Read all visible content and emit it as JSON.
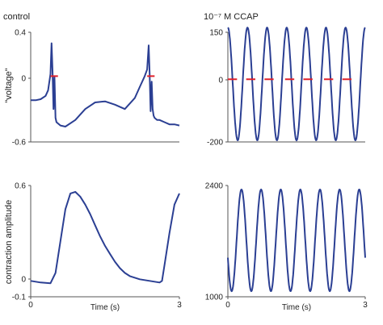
{
  "chart_data": [
    {
      "id": "top-left",
      "type": "line",
      "title": "control",
      "ylabel": "\"voltage\"",
      "xlabel": "",
      "xlim": [
        0,
        3
      ],
      "ylim": [
        -0.6,
        0.4
      ],
      "yticks": [
        "0.4",
        "0",
        "-0.6"
      ],
      "xticks": [],
      "series": [
        {
          "color": "#2b3f93",
          "x": [
            0,
            0.1,
            0.2,
            0.3,
            0.35,
            0.4,
            0.42,
            0.44,
            0.46,
            0.48,
            0.5,
            0.52,
            0.6,
            0.7,
            0.9,
            1.1,
            1.3,
            1.5,
            1.7,
            1.9,
            2.1,
            2.2,
            2.3,
            2.35,
            2.38,
            2.4,
            2.42,
            2.44,
            2.46,
            2.48,
            2.5,
            2.55,
            2.6,
            2.7,
            2.8,
            2.9,
            3.0
          ],
          "y": [
            -0.22,
            -0.22,
            -0.21,
            -0.18,
            -0.13,
            0.02,
            0.3,
            0.05,
            -0.3,
            0.0,
            -0.38,
            -0.42,
            -0.45,
            -0.46,
            -0.4,
            -0.3,
            -0.24,
            -0.23,
            -0.26,
            -0.3,
            -0.2,
            -0.1,
            0.0,
            0.06,
            0.28,
            0.02,
            -0.32,
            -0.05,
            -0.3,
            -0.36,
            -0.38,
            -0.4,
            -0.4,
            -0.42,
            -0.44,
            -0.44,
            -0.45
          ]
        },
        {
          "color": "#e0202a",
          "segments": [
            [
              0.4,
              0.55,
              0
            ],
            [
              2.35,
              2.5,
              0
            ]
          ]
        }
      ]
    },
    {
      "id": "top-right",
      "type": "line",
      "title": "10⁻⁷ M CCAP",
      "ylabel": "",
      "xlabel": "",
      "xlim": [
        0,
        3
      ],
      "ylim": [
        -200,
        150
      ],
      "yticks": [
        "150",
        "0",
        "-200"
      ],
      "xticks": [],
      "series": [
        {
          "color": "#2b3f93",
          "kind": "sine",
          "cycles": 7,
          "amplitude": 180,
          "offset": -15,
          "phase_deg": 90
        },
        {
          "color": "#e0202a",
          "segments": [
            [
              0.0,
              0.2,
              0
            ],
            [
              0.4,
              0.6,
              0
            ],
            [
              0.8,
              1.0,
              0
            ],
            [
              1.25,
              1.45,
              0
            ],
            [
              1.65,
              1.85,
              0
            ],
            [
              2.1,
              2.3,
              0
            ],
            [
              2.5,
              2.7,
              0
            ]
          ]
        }
      ]
    },
    {
      "id": "bottom-left",
      "type": "line",
      "title": "",
      "ylabel": "contraction amplitude",
      "xlabel": "Time (s)",
      "xlim": [
        0,
        3
      ],
      "ylim": [
        -0.1,
        0.6
      ],
      "yticks": [
        "0.6",
        "0",
        "-0.1"
      ],
      "xticks": [
        "0",
        "3"
      ],
      "series": [
        {
          "color": "#2b3f93",
          "x": [
            0,
            0.2,
            0.4,
            0.5,
            0.6,
            0.7,
            0.8,
            0.9,
            1.0,
            1.1,
            1.2,
            1.3,
            1.4,
            1.5,
            1.6,
            1.7,
            1.8,
            1.9,
            2.0,
            2.2,
            2.4,
            2.6,
            2.65,
            2.7,
            2.8,
            2.9,
            3.0
          ],
          "y": [
            0.0,
            -0.01,
            -0.015,
            0.05,
            0.25,
            0.45,
            0.55,
            0.56,
            0.53,
            0.48,
            0.42,
            0.35,
            0.28,
            0.22,
            0.17,
            0.12,
            0.08,
            0.05,
            0.03,
            0.01,
            0.0,
            -0.01,
            0.0,
            0.1,
            0.3,
            0.48,
            0.55
          ]
        }
      ]
    },
    {
      "id": "bottom-right",
      "type": "line",
      "title": "",
      "ylabel": "",
      "xlabel": "Time (s)",
      "xlim": [
        0,
        3
      ],
      "ylim": [
        1000,
        2400
      ],
      "yticks": [
        "2400",
        "1000"
      ],
      "xticks": [
        "0",
        "3"
      ],
      "series": [
        {
          "color": "#2b3f93",
          "kind": "sine",
          "cycles": 7,
          "amplitude": 640,
          "offset": 1710,
          "phase_deg": 200
        }
      ]
    }
  ]
}
